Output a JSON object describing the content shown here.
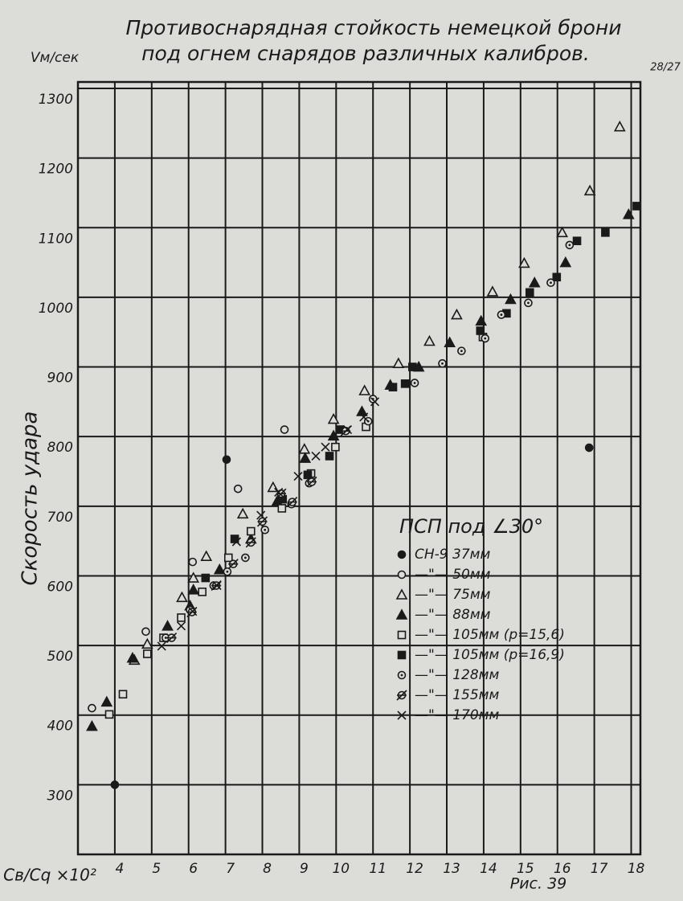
{
  "chart_data": {
    "type": "scatter",
    "title": [
      "Противоснарядная стойкость немецкой брони",
      "под огнем снарядов различных калибров."
    ],
    "ylabel": "Скорость удара",
    "yunit": "Vм/сек",
    "xlabel": "Cв/Cq ×10²",
    "corner_note": "28/27",
    "figure_label": "Рис. 39",
    "legend_title": "ПСП под ∠30°",
    "xlim": [
      3,
      18.25
    ],
    "ylim": [
      200,
      1300
    ],
    "xticks": [
      4,
      5,
      6,
      7,
      8,
      9,
      10,
      11,
      12,
      13,
      14,
      15,
      16,
      17,
      18
    ],
    "yticks": [
      300,
      400,
      500,
      600,
      700,
      800,
      900,
      1000,
      1100,
      1200,
      1300
    ],
    "grid": true,
    "series": [
      {
        "name": "СН-9 37мм",
        "marker": "circle",
        "filled": true,
        "color": "#1a1a1a",
        "x": [
          4,
          7.03,
          16.86
        ],
        "values": [
          300,
          767,
          784
        ]
      },
      {
        "name": "—\"— 50мм",
        "marker": "circle",
        "filled": false,
        "color": "#1a1a1a",
        "x": [
          3.38,
          4.84,
          6.11,
          7.34,
          8.6
        ],
        "values": [
          410,
          520,
          620,
          725,
          810
        ]
      },
      {
        "name": "—\"— 75мм",
        "marker": "triangle",
        "filled": false,
        "color": "#1a1a1a",
        "x": [
          4.53,
          4.88,
          5.82,
          6.13,
          6.48,
          7.47,
          8.29,
          9.14,
          9.93,
          10.77,
          11.69,
          12.53,
          13.27,
          14.24,
          15.1,
          16.13,
          16.88,
          17.69
        ],
        "values": [
          479,
          502,
          569,
          597,
          628,
          689,
          727,
          782,
          825,
          866,
          905,
          937,
          975,
          1008,
          1049,
          1093,
          1153,
          1245
        ]
      },
      {
        "name": "—\"— 88мм",
        "marker": "triangle",
        "filled": true,
        "color": "#1a1a1a",
        "x": [
          3.38,
          3.78,
          4.48,
          5.43,
          6.04,
          6.13,
          6.84,
          7.69,
          8.4,
          9.16,
          9.93,
          10.7,
          11.47,
          12.24,
          13.08,
          13.93,
          14.73,
          15.38,
          16.22,
          17.93
        ],
        "values": [
          384,
          419,
          482,
          528,
          557,
          580,
          609,
          653,
          707,
          769,
          801,
          836,
          874,
          900,
          935,
          966,
          997,
          1021,
          1050,
          1119
        ]
      },
      {
        "name": "—\"— 105мм (р=15,6)",
        "marker": "square",
        "filled": false,
        "color": "#1a1a1a",
        "x": [
          3.85,
          4.22,
          4.88,
          5.32,
          5.8,
          6.37,
          7.08,
          7.69,
          8.53,
          9.32,
          9.98,
          10.81,
          13.98
        ],
        "values": [
          401,
          430,
          488,
          511,
          540,
          577,
          626,
          664,
          697,
          747,
          785,
          814,
          943
        ]
      },
      {
        "name": "—\"— 105мм (р=16,9)",
        "marker": "square",
        "filled": true,
        "color": "#1a1a1a",
        "x": [
          6.46,
          7.25,
          8.55,
          9.23,
          9.82,
          10.11,
          11.54,
          11.87,
          12.07,
          13.91,
          14.62,
          15.25,
          15.98,
          16.53,
          17.3,
          18.15
        ],
        "values": [
          597,
          653,
          710,
          745,
          772,
          810,
          871,
          876,
          900,
          952,
          977,
          1007,
          1029,
          1081,
          1093,
          1131
        ]
      },
      {
        "name": "—\"— 128мм",
        "marker": "circle-dot",
        "filled": false,
        "color": "#1a1a1a",
        "x": [
          5.38,
          6.04,
          6.68,
          7.05,
          7.54,
          8.07,
          8.79,
          9.27,
          10.87,
          11.0,
          12.13,
          12.88,
          13.4,
          14.04,
          14.48,
          15.21,
          15.82,
          16.33
        ],
        "values": [
          511,
          551,
          586,
          606,
          626,
          666,
          703,
          733,
          822,
          854,
          877,
          905,
          923,
          941,
          975,
          992,
          1021,
          1075
        ]
      },
      {
        "name": "—\"— 155мм",
        "marker": "circle-cross",
        "filled": false,
        "color": "#1a1a1a",
        "x": [
          5.54,
          6.09,
          6.75,
          7.21,
          7.69,
          8.0,
          8.51,
          8.81,
          9.34,
          10.26
        ],
        "values": [
          511,
          548,
          586,
          617,
          648,
          678,
          718,
          706,
          735,
          808
        ]
      },
      {
        "name": "—\"— 170мм",
        "marker": "x",
        "filled": false,
        "color": "#1a1a1a",
        "x": [
          5.27,
          5.8,
          6.11,
          6.77,
          7.3,
          7.96,
          8.44,
          8.97,
          9.45,
          9.71,
          10.31,
          10.75,
          11.05
        ],
        "values": [
          499,
          528,
          549,
          586,
          649,
          687,
          720,
          743,
          772,
          785,
          810,
          828,
          850
        ]
      }
    ]
  }
}
